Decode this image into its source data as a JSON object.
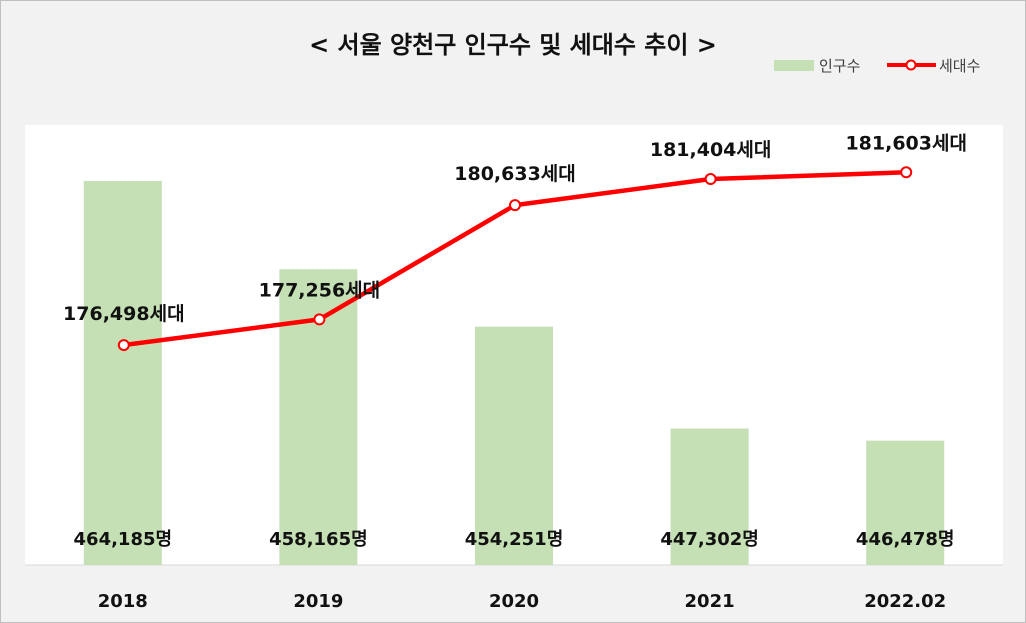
{
  "chart_data": {
    "type": "bar",
    "title": "< 서울 양천구 인구수 및 세대수 추이 >",
    "categories": [
      "2018",
      "2019",
      "2020",
      "2021",
      "2022.02"
    ],
    "series": [
      {
        "name": "인구수",
        "type": "bar",
        "color": "#c5e0b4",
        "values": [
          464185,
          458165,
          454251,
          447302,
          446478
        ],
        "labels": [
          "464,185명",
          "458,165명",
          "454,251명",
          "447,302명",
          "446,478명"
        ],
        "axis_range": [
          438000,
          468000
        ]
      },
      {
        "name": "세대수",
        "type": "line",
        "color": "#ff0000",
        "marker": "circle-open",
        "values": [
          176498,
          177256,
          180633,
          181404,
          181603
        ],
        "labels": [
          "176,498세대",
          "177,256세대",
          "180,633세대",
          "181,404세대",
          "181,603세대"
        ],
        "axis_range": [
          170000,
          183000
        ]
      }
    ],
    "legend_position": "top-right",
    "grid": false
  }
}
